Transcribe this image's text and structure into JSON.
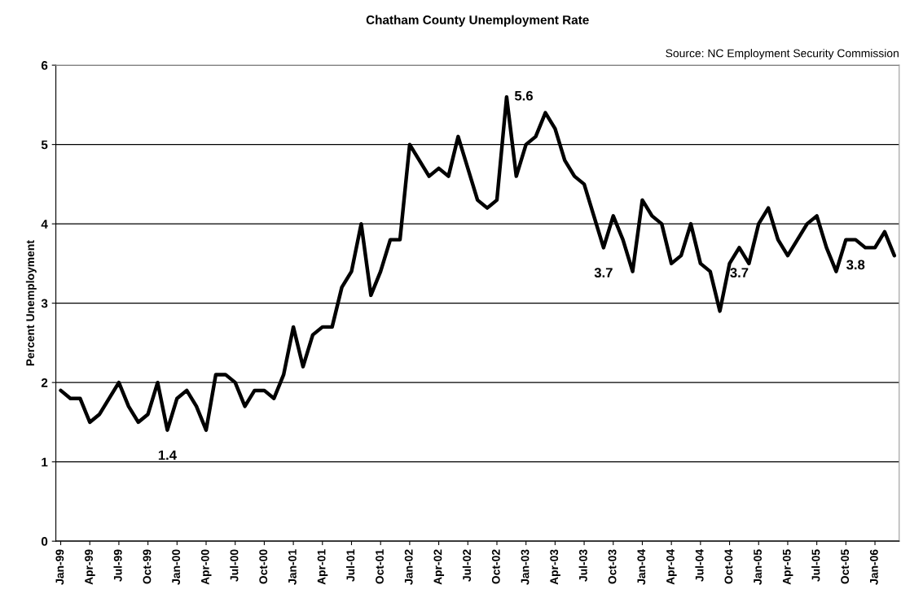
{
  "chart_data": {
    "type": "line",
    "title": "Chatham County Unemployment Rate",
    "ylabel": "Percent Unemployment",
    "annotations": [
      "Source: NC Employment Security Commission"
    ],
    "categories": [
      "Jan-99",
      null,
      null,
      "Apr-99",
      null,
      null,
      "Jul-99",
      null,
      null,
      "Oct-99",
      null,
      null,
      "Jan-00",
      null,
      null,
      "Apr-00",
      null,
      null,
      "Jul-00",
      null,
      null,
      "Oct-00",
      null,
      null,
      "Jan-01",
      null,
      null,
      "Apr-01",
      null,
      null,
      "Jul-01",
      null,
      null,
      "Oct-01",
      null,
      null,
      "Jan-02",
      null,
      null,
      "Apr-02",
      null,
      null,
      "Jul-02",
      null,
      null,
      "Oct-02",
      null,
      null,
      "Jan-03",
      null,
      null,
      "Apr-03",
      null,
      null,
      "Jul-03",
      null,
      null,
      "Oct-03",
      null,
      null,
      "Jan-04",
      null,
      null,
      "Apr-04",
      null,
      null,
      "Jul-04",
      null,
      null,
      "Oct-04",
      null,
      null,
      "Jan-05",
      null,
      null,
      "Apr-05",
      null,
      null,
      "Jul-05",
      null,
      null,
      "Oct-05",
      null,
      null,
      "Jan-06",
      null,
      null
    ],
    "series": [
      {
        "color": "#000000",
        "values": [
          1.9,
          1.8,
          1.8,
          1.5,
          1.6,
          1.8,
          2.0,
          1.7,
          1.5,
          1.6,
          2.0,
          1.4,
          1.8,
          1.9,
          1.7,
          1.4,
          2.1,
          2.1,
          2.0,
          1.7,
          1.9,
          1.9,
          1.8,
          2.1,
          2.7,
          2.2,
          2.6,
          2.7,
          2.7,
          3.2,
          3.4,
          4.0,
          3.1,
          3.4,
          3.8,
          3.8,
          5.0,
          4.8,
          4.6,
          4.7,
          4.6,
          5.1,
          4.7,
          4.3,
          4.2,
          4.3,
          5.6,
          4.6,
          5.0,
          5.1,
          5.4,
          5.2,
          4.8,
          4.6,
          4.5,
          4.1,
          3.7,
          4.1,
          3.8,
          3.4,
          4.3,
          4.1,
          4.0,
          3.5,
          3.6,
          4.0,
          3.5,
          3.4,
          2.9,
          3.5,
          3.7,
          3.5,
          4.0,
          4.2,
          3.8,
          3.6,
          3.8,
          4.0,
          4.1,
          3.7,
          3.4,
          3.8,
          3.8,
          3.7,
          3.7,
          3.9,
          3.6
        ],
        "value_labels": [
          null,
          null,
          null,
          null,
          null,
          null,
          null,
          null,
          null,
          null,
          null,
          "1.4",
          null,
          null,
          null,
          null,
          null,
          null,
          null,
          null,
          null,
          null,
          null,
          null,
          null,
          null,
          null,
          null,
          null,
          null,
          null,
          null,
          null,
          null,
          null,
          null,
          null,
          null,
          null,
          null,
          null,
          null,
          null,
          null,
          null,
          null,
          "5.6",
          null,
          null,
          null,
          null,
          null,
          null,
          null,
          null,
          null,
          "3.7",
          null,
          null,
          null,
          null,
          null,
          null,
          null,
          null,
          null,
          null,
          null,
          null,
          null,
          "3.7",
          null,
          null,
          null,
          null,
          null,
          null,
          null,
          null,
          null,
          null,
          null,
          "3.8",
          null,
          null,
          null,
          null
        ]
      }
    ],
    "ylim": [
      0,
      6
    ],
    "yticks": [
      0,
      1,
      2,
      3,
      4,
      5,
      6
    ],
    "grid": "y",
    "legend": false,
    "marker": "none",
    "line_style": "solid"
  }
}
